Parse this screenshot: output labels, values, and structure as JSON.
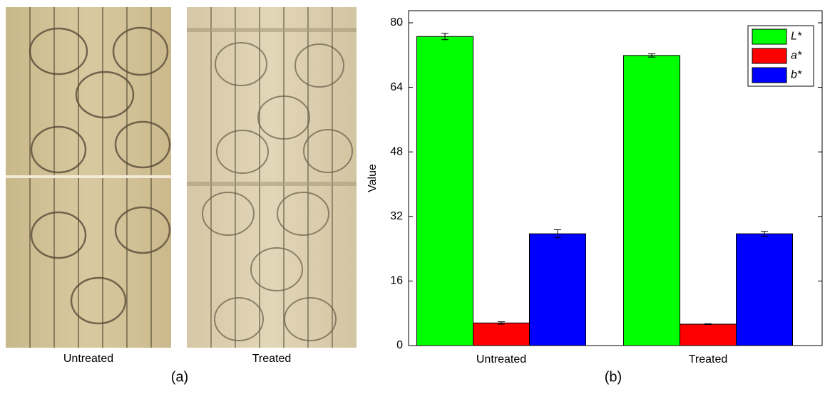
{
  "photos": {
    "captions": [
      "Untreated",
      "Treated"
    ],
    "panel_label": "(a)"
  },
  "chart_data": {
    "type": "bar",
    "panel_label": "(b)",
    "y_label": "Value",
    "categories": [
      "Untreated",
      "Treated"
    ],
    "series": [
      {
        "name": "L*",
        "color": "#00ff00",
        "values": [
          76.6,
          71.9
        ],
        "errors": [
          0.8,
          0.4
        ]
      },
      {
        "name": "a*",
        "color": "#ff0000",
        "values": [
          5.6,
          5.3
        ],
        "errors": [
          0.3,
          0.1
        ]
      },
      {
        "name": "b*",
        "color": "#0000ff",
        "values": [
          27.7,
          27.7
        ],
        "errors": [
          1.0,
          0.6
        ]
      }
    ],
    "ylim": [
      0,
      83
    ],
    "yticks": [
      0,
      16,
      32,
      48,
      64,
      80
    ],
    "legend": "upper right"
  }
}
